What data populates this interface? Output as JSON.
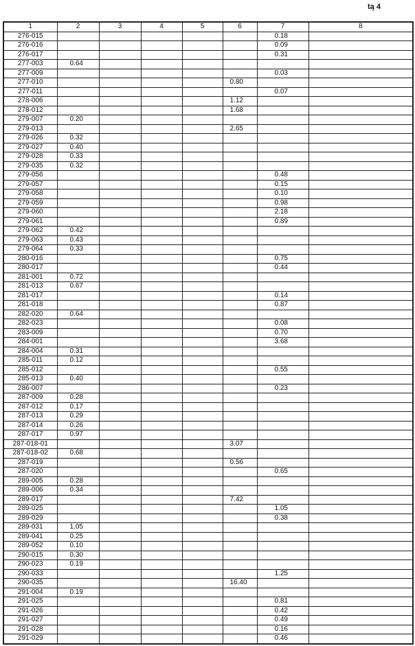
{
  "page_note": "tą 4",
  "headers": [
    "1",
    "2",
    "3",
    "4",
    "5",
    "6",
    "7",
    "8"
  ],
  "rows": [
    [
      "276-015",
      "",
      "",
      "",
      "",
      "",
      "0.18",
      ""
    ],
    [
      "276-016",
      "",
      "",
      "",
      "",
      "",
      "0.09",
      ""
    ],
    [
      "276-017",
      "",
      "",
      "",
      "",
      "",
      "0.31",
      ""
    ],
    [
      "277-003",
      "0.64",
      "",
      "",
      "",
      "",
      "",
      ""
    ],
    [
      "277-009",
      "",
      "",
      "",
      "",
      "",
      "0.03",
      ""
    ],
    [
      "277-010",
      "",
      "",
      "",
      "",
      "0.80",
      "",
      ""
    ],
    [
      "277-011",
      "",
      "",
      "",
      "",
      "",
      "0.07",
      ""
    ],
    [
      "278-006",
      "",
      "",
      "",
      "",
      "1.12",
      "",
      ""
    ],
    [
      "278-012",
      "",
      "",
      "",
      "",
      "1.68",
      "",
      ""
    ],
    [
      "279-007",
      "0.20",
      "",
      "",
      "",
      "",
      "",
      ""
    ],
    [
      "279-013",
      "",
      "",
      "",
      "",
      "2.65",
      "",
      ""
    ],
    [
      "279-026",
      "0.32",
      "",
      "",
      "",
      "",
      "",
      ""
    ],
    [
      "279-027",
      "0.40",
      "",
      "",
      "",
      "",
      "",
      ""
    ],
    [
      "279-028",
      "0.33",
      "",
      "",
      "",
      "",
      "",
      ""
    ],
    [
      "279-035",
      "0.32",
      "",
      "",
      "",
      "",
      "",
      ""
    ],
    [
      "279-056",
      "",
      "",
      "",
      "",
      "",
      "0.48",
      ""
    ],
    [
      "279-057",
      "",
      "",
      "",
      "",
      "",
      "0.15",
      ""
    ],
    [
      "279-058",
      "",
      "",
      "",
      "",
      "",
      "0.10",
      ""
    ],
    [
      "279-059",
      "",
      "",
      "",
      "",
      "",
      "0.98",
      ""
    ],
    [
      "279-060",
      "",
      "",
      "",
      "",
      "",
      "2.18",
      ""
    ],
    [
      "279-061",
      "",
      "",
      "",
      "",
      "",
      "0.89",
      ""
    ],
    [
      "279-062",
      "0.42",
      "",
      "",
      "",
      "",
      "",
      ""
    ],
    [
      "279-063",
      "0.43",
      "",
      "",
      "",
      "",
      "",
      ""
    ],
    [
      "279-064",
      "0.33",
      "",
      "",
      "",
      "",
      "",
      ""
    ],
    [
      "280-016",
      "",
      "",
      "",
      "",
      "",
      "0.75",
      ""
    ],
    [
      "280-017",
      "",
      "",
      "",
      "",
      "",
      "0.44",
      ""
    ],
    [
      "281-001",
      "0.72",
      "",
      "",
      "",
      "",
      "",
      ""
    ],
    [
      "281-013",
      "0.67",
      "",
      "",
      "",
      "",
      "",
      ""
    ],
    [
      "281-017",
      "",
      "",
      "",
      "",
      "",
      "0.14",
      ""
    ],
    [
      "281-018",
      "",
      "",
      "",
      "",
      "",
      "0.87",
      ""
    ],
    [
      "282-020",
      "0.64",
      "",
      "",
      "",
      "",
      "",
      ""
    ],
    [
      "282-023",
      "",
      "",
      "",
      "",
      "",
      "0.08",
      ""
    ],
    [
      "283-009",
      "",
      "",
      "",
      "",
      "",
      "0.70",
      ""
    ],
    [
      "284-001",
      "",
      "",
      "",
      "",
      "",
      "3.68",
      ""
    ],
    [
      "284-004",
      "0.31",
      "",
      "",
      "",
      "",
      "",
      ""
    ],
    [
      "285-011",
      "0.12",
      "",
      "",
      "",
      "",
      "",
      ""
    ],
    [
      "285-012",
      "",
      "",
      "",
      "",
      "",
      "0.55",
      ""
    ],
    [
      "285-013",
      "0.40",
      "",
      "",
      "",
      "",
      "",
      ""
    ],
    [
      "286-007",
      "",
      "",
      "",
      "",
      "",
      "0.23",
      ""
    ],
    [
      "287-009",
      "0.28",
      "",
      "",
      "",
      "",
      "",
      ""
    ],
    [
      "287-012",
      "0.17",
      "",
      "",
      "",
      "",
      "",
      ""
    ],
    [
      "287-013",
      "0.29",
      "",
      "",
      "",
      "",
      "",
      ""
    ],
    [
      "287-014",
      "0.26",
      "",
      "",
      "",
      "",
      "",
      ""
    ],
    [
      "287-017",
      "0.97",
      "",
      "",
      "",
      "",
      "",
      ""
    ],
    [
      "287-018-01",
      "",
      "",
      "",
      "",
      "3.07",
      "",
      ""
    ],
    [
      "287-018-02",
      "0.68",
      "",
      "",
      "",
      "",
      "",
      ""
    ],
    [
      "287-019",
      "",
      "",
      "",
      "",
      "0.56",
      "",
      ""
    ],
    [
      "287-020",
      "",
      "",
      "",
      "",
      "",
      "0.65",
      ""
    ],
    [
      "289-005",
      "0.28",
      "",
      "",
      "",
      "",
      "",
      ""
    ],
    [
      "289-006",
      "0.34",
      "",
      "",
      "",
      "",
      "",
      ""
    ],
    [
      "289-017",
      "",
      "",
      "",
      "",
      "7.42",
      "",
      ""
    ],
    [
      "289-025",
      "",
      "",
      "",
      "",
      "",
      "1.05",
      ""
    ],
    [
      "289-029",
      "",
      "",
      "",
      "",
      "",
      "0.38",
      ""
    ],
    [
      "289-031",
      "1.05",
      "",
      "",
      "",
      "",
      "",
      ""
    ],
    [
      "289-041",
      "0.25",
      "",
      "",
      "",
      "",
      "",
      ""
    ],
    [
      "289-052",
      "0.10",
      "",
      "",
      "",
      "",
      "",
      ""
    ],
    [
      "290-015",
      "0.30",
      "",
      "",
      "",
      "",
      "",
      ""
    ],
    [
      "290-023",
      "0.19",
      "",
      "",
      "",
      "",
      "",
      ""
    ],
    [
      "290-033",
      "",
      "",
      "",
      "",
      "",
      "1.25",
      ""
    ],
    [
      "290-035",
      "",
      "",
      "",
      "",
      "16.40",
      "",
      ""
    ],
    [
      "291-004",
      "0.19",
      "",
      "",
      "",
      "",
      "",
      ""
    ],
    [
      "291-025",
      "",
      "",
      "",
      "",
      "",
      "0.81",
      ""
    ],
    [
      "291-026",
      "",
      "",
      "",
      "",
      "",
      "0.42",
      ""
    ],
    [
      "291-027",
      "",
      "",
      "",
      "",
      "",
      "0.49",
      ""
    ],
    [
      "291-028",
      "",
      "",
      "",
      "",
      "",
      "0.16",
      ""
    ],
    [
      "291-029",
      "",
      "",
      "",
      "",
      "",
      "0.46",
      ""
    ]
  ]
}
